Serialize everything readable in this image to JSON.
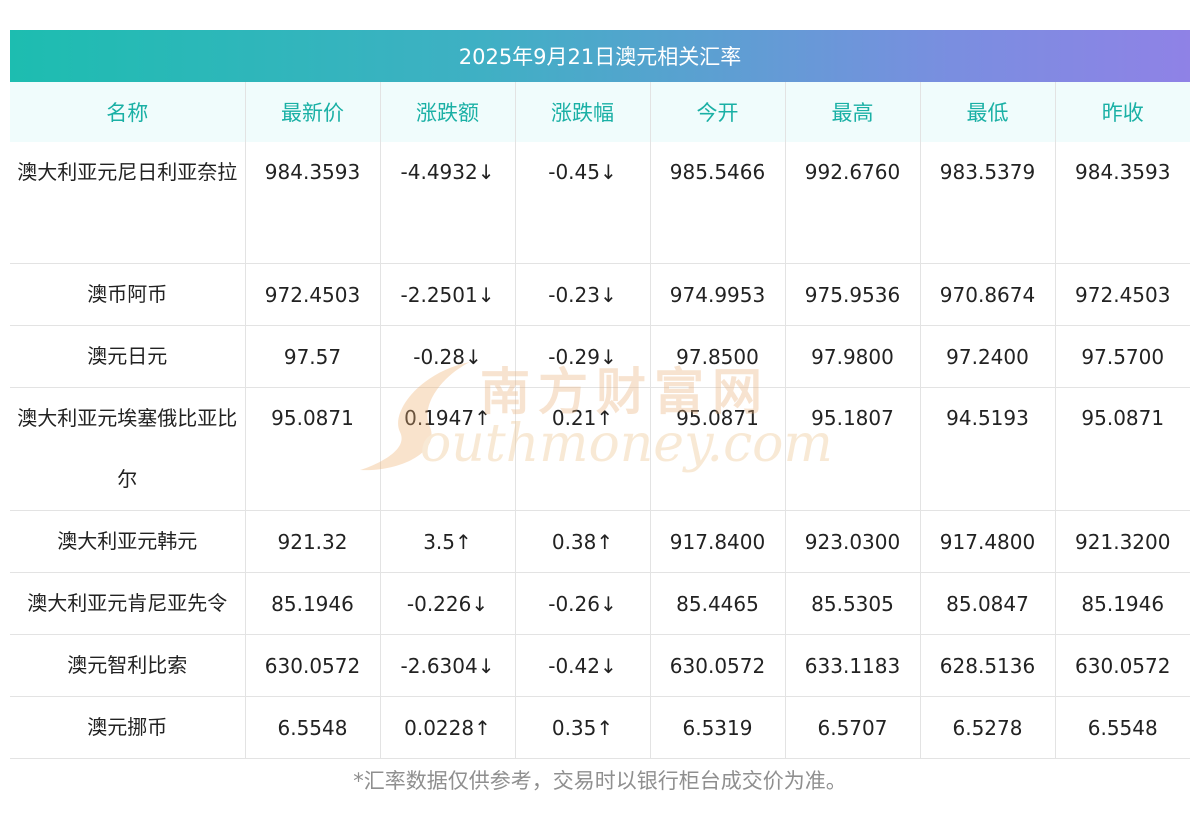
{
  "title": "2025年9月21日澳元相关汇率",
  "headers": [
    "名称",
    "最新价",
    "涨跌额",
    "涨跌幅",
    "今开",
    "最高",
    "最低",
    "昨收"
  ],
  "rows": [
    {
      "name": "澳大利亚元尼日利亚奈拉",
      "latest": "984.3593",
      "change": "-4.4932↓",
      "pct": "-0.45↓",
      "open": "985.5466",
      "high": "992.6760",
      "low": "983.5379",
      "prev": "984.3593",
      "dir": "down"
    },
    {
      "name": "澳币阿币",
      "latest": "972.4503",
      "change": "-2.2501↓",
      "pct": "-0.23↓",
      "open": "974.9953",
      "high": "975.9536",
      "low": "970.8674",
      "prev": "972.4503",
      "dir": "down"
    },
    {
      "name": "澳元日元",
      "latest": "97.57",
      "change": "-0.28↓",
      "pct": "-0.29↓",
      "open": "97.8500",
      "high": "97.9800",
      "low": "97.2400",
      "prev": "97.5700",
      "dir": "down"
    },
    {
      "name": "澳大利亚元埃塞俄比亚比尔",
      "latest": "95.0871",
      "change": "0.1947↑",
      "pct": "0.21↑",
      "open": "95.0871",
      "high": "95.1807",
      "low": "94.5193",
      "prev": "95.0871",
      "dir": "up"
    },
    {
      "name": "澳大利亚元韩元",
      "latest": "921.32",
      "change": "3.5↑",
      "pct": "0.38↑",
      "open": "917.8400",
      "high": "923.0300",
      "low": "917.4800",
      "prev": "921.3200",
      "dir": "up"
    },
    {
      "name": "澳大利亚元肯尼亚先令",
      "latest": "85.1946",
      "change": "-0.226↓",
      "pct": "-0.26↓",
      "open": "85.4465",
      "high": "85.5305",
      "low": "85.0847",
      "prev": "85.1946",
      "dir": "down"
    },
    {
      "name": "澳元智利比索",
      "latest": "630.0572",
      "change": "-2.6304↓",
      "pct": "-0.42↓",
      "open": "630.0572",
      "high": "633.1183",
      "low": "628.5136",
      "prev": "630.0572",
      "dir": "down"
    },
    {
      "name": "澳元挪币",
      "latest": "6.5548",
      "change": "0.0228↑",
      "pct": "0.35↑",
      "open": "6.5319",
      "high": "6.5707",
      "low": "6.5278",
      "prev": "6.5548",
      "dir": "up"
    }
  ],
  "note": "*汇率数据仅供参考，交易时以银行柜台成交价为准。",
  "watermark": {
    "cn": "南方财富网",
    "en": "outhmoney.com"
  },
  "colors": {
    "up": "#ee1d1d",
    "down": "#119211",
    "header_text": "#1ab0a5"
  }
}
